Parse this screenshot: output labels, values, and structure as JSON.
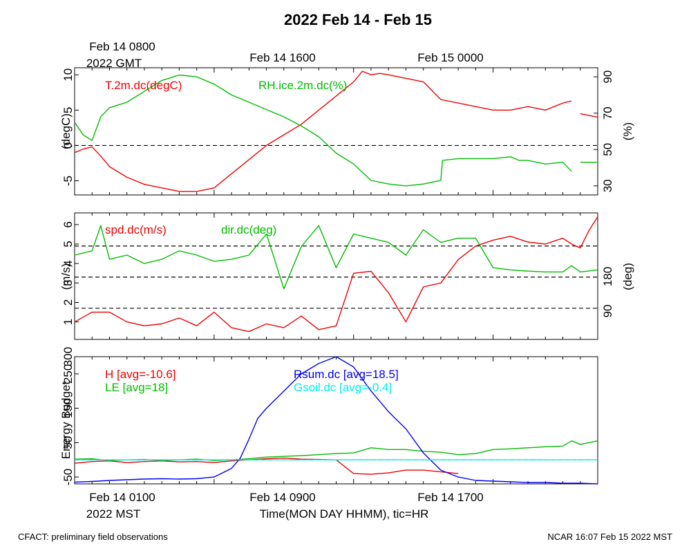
{
  "title": "2022 Feb 14 - Feb 15",
  "top_time_labels": {
    "first_line1": "Feb 14 0800",
    "first_line2": "2022 GMT",
    "second": "Feb 14 1600",
    "third": "Feb 15 0000"
  },
  "bottom_time_labels": {
    "first": "Feb 14 0100",
    "zone": "2022 MST",
    "second": "Feb 14 0900",
    "third": "Feb 14 1700"
  },
  "xlabel": "Time(MON DAY HHMM), tic=HR",
  "footer_left": "CFACT: preliminary field observations",
  "footer_right": "NCAR 16:07 Feb 15 2022 MST",
  "colors": {
    "red": "#ee0000",
    "green": "#00bb00",
    "blue": "#0000ee",
    "cyan": "#00eeee",
    "black": "#000000"
  },
  "chart_data": [
    {
      "type": "line",
      "panel": "temperature-humidity",
      "x_unit": "hours since Feb 14 0000 MST",
      "xlim": [
        1,
        31
      ],
      "ylabel_left": "(degC)",
      "ylabel_right": "(%)",
      "ylim_left": [
        -7,
        11
      ],
      "ylim_right": [
        25,
        95
      ],
      "yticks_left": [
        "10",
        "5",
        "0",
        "-5"
      ],
      "yticks_right": [
        "90",
        "70",
        "50",
        "30"
      ],
      "reference_lines_left": [
        0
      ],
      "series": [
        {
          "name": "T.2m.dc(degC)",
          "color": "#ee0000",
          "axis": "left",
          "x": [
            1,
            1.5,
            2,
            2.5,
            3,
            4,
            5,
            6,
            7,
            8,
            9,
            10,
            11,
            12,
            13,
            14,
            15,
            16,
            17,
            17.5,
            18,
            18.5,
            19,
            20,
            21,
            22,
            23,
            24,
            25,
            26,
            27,
            28,
            29,
            29.5,
            29.7,
            30,
            31
          ],
          "values": [
            -1,
            -0.5,
            -0.2,
            -1.5,
            -3,
            -4.5,
            -5.5,
            -6,
            -6.5,
            -6.5,
            -6,
            -4,
            -2,
            0,
            1.5,
            3,
            5,
            7,
            9,
            10.5,
            10,
            10.2,
            10,
            9.5,
            9,
            6.5,
            6,
            5.5,
            5,
            5,
            5.5,
            5,
            6,
            6.3,
            null,
            4.5,
            4
          ]
        },
        {
          "name": "RH.ice.2m.dc(%)",
          "color": "#00bb00",
          "axis": "right",
          "x": [
            1,
            1.5,
            2,
            2.5,
            3,
            4,
            5,
            6,
            7,
            8,
            9,
            10,
            11,
            12,
            13,
            14,
            15,
            16,
            17,
            18,
            19,
            20,
            21,
            22,
            22.1,
            23,
            24,
            25,
            26,
            26.5,
            27,
            28,
            29,
            29.5,
            29.7,
            30,
            31
          ],
          "values": [
            65,
            58,
            55,
            68,
            73,
            76,
            82,
            88,
            91,
            90,
            86,
            80,
            76,
            72,
            68,
            63,
            57,
            48,
            42,
            33,
            31,
            30,
            31,
            33,
            44,
            45,
            45,
            45,
            46,
            44,
            44,
            42,
            43,
            38,
            null,
            43,
            43
          ]
        }
      ]
    },
    {
      "type": "line",
      "panel": "wind",
      "x_unit": "hours since Feb 14 0000 MST",
      "xlim": [
        1,
        31
      ],
      "ylabel_left": "(m/s)",
      "ylabel_right": "(deg)",
      "ylim_left": [
        0.1,
        6.6
      ],
      "yticks_left": [
        "6",
        "5",
        "4",
        "3",
        "2",
        "1"
      ],
      "yticks_right": [
        "180",
        "90"
      ],
      "reference_lines_left": [
        1.7,
        3.3,
        4.9
      ],
      "series": [
        {
          "name": "spd.dc(m/s)",
          "color": "#ee0000",
          "axis": "left",
          "x": [
            1,
            2,
            3,
            4,
            5,
            6,
            7,
            8,
            9,
            10,
            11,
            12,
            13,
            14,
            15,
            16,
            17,
            18,
            19,
            20,
            21,
            22,
            23,
            24,
            25,
            26,
            27,
            28,
            29,
            29.5,
            30,
            30.5,
            31
          ],
          "values": [
            1,
            1.5,
            1.5,
            1,
            0.8,
            0.9,
            1.2,
            0.8,
            1.5,
            0.7,
            0.5,
            0.9,
            0.7,
            1.3,
            0.6,
            0.8,
            3.5,
            3.6,
            2.5,
            1.0,
            2.8,
            3.0,
            4.2,
            4.9,
            5.2,
            5.4,
            5.1,
            5.0,
            5.3,
            5.0,
            4.8,
            5.7,
            6.4
          ]
        },
        {
          "name": "dir.dc(deg)",
          "color": "#00bb00",
          "axis": "right",
          "x": [
            1,
            2,
            2.5,
            3,
            4,
            5,
            6,
            7,
            8,
            9,
            10,
            11,
            12,
            13,
            14,
            15,
            16,
            17,
            18,
            19,
            20,
            21,
            22,
            23,
            24,
            25,
            26,
            27,
            28,
            29,
            29.5,
            30,
            31
          ],
          "values": [
            230,
            240,
            300,
            220,
            230,
            210,
            220,
            240,
            230,
            215,
            220,
            230,
            280,
            150,
            250,
            300,
            200,
            280,
            270,
            260,
            230,
            290,
            260,
            270,
            270,
            200,
            195,
            192,
            190,
            190,
            205,
            190,
            195
          ]
        }
      ]
    },
    {
      "type": "line",
      "panel": "energy-budget",
      "x_unit": "hours since Feb 14 0000 MST",
      "xlim": [
        1,
        31
      ],
      "ylabel_left": "Energy Budget",
      "ylim_left": [
        -70,
        300
      ],
      "yticks_left": [
        "300",
        "250",
        "150",
        "50",
        "-50"
      ],
      "reference_lines_left": [
        0
      ],
      "series": [
        {
          "name": "H [avg=-10.6]",
          "color": "#ee0000",
          "x": [
            1,
            2,
            3,
            4,
            5,
            6,
            7,
            8,
            9,
            10,
            11,
            12,
            13,
            14,
            15,
            16,
            17,
            18,
            19,
            20,
            21,
            22,
            23
          ],
          "values": [
            -10,
            -5,
            -3,
            -8,
            -5,
            -3,
            -6,
            -5,
            -8,
            -3,
            0,
            3,
            5,
            2,
            1,
            0,
            -40,
            -42,
            -38,
            -30,
            -30,
            -35,
            -40
          ]
        },
        {
          "name": "LE [avg=18]",
          "color": "#00bb00",
          "x": [
            1,
            2,
            3,
            4,
            5,
            6,
            7,
            8,
            9,
            10,
            11,
            12,
            13,
            14,
            15,
            16,
            17,
            18,
            19,
            20,
            21,
            22,
            23,
            24,
            25,
            26,
            27,
            28,
            29,
            29.5,
            30,
            31
          ],
          "values": [
            2,
            3,
            -2,
            0,
            1,
            -2,
            0,
            2,
            -2,
            0,
            3,
            8,
            10,
            12,
            15,
            18,
            20,
            35,
            30,
            30,
            25,
            22,
            15,
            18,
            30,
            32,
            35,
            38,
            40,
            55,
            45,
            55
          ]
        },
        {
          "name": "Rsum.dc [avg=18.5]",
          "color": "#0000ee",
          "x": [
            1,
            2,
            3,
            4,
            5,
            6,
            7,
            8,
            9,
            10,
            10.5,
            11,
            11.5,
            12,
            13,
            14,
            15,
            16,
            17,
            18,
            19,
            20,
            21,
            22,
            23,
            24,
            25,
            26,
            27,
            28,
            29,
            30,
            31
          ],
          "values": [
            -65,
            -63,
            -60,
            -58,
            -56,
            -55,
            -56,
            -55,
            -50,
            -25,
            5,
            60,
            120,
            150,
            200,
            250,
            280,
            300,
            270,
            200,
            140,
            90,
            20,
            -30,
            -50,
            -60,
            -62,
            -64,
            -66,
            -66,
            -68,
            -68,
            -70
          ]
        },
        {
          "name": "Gsoil.dc [avg=-0.4]",
          "color": "#00eeee",
          "x": [
            1,
            31
          ],
          "values": [
            0,
            0
          ]
        }
      ]
    }
  ]
}
